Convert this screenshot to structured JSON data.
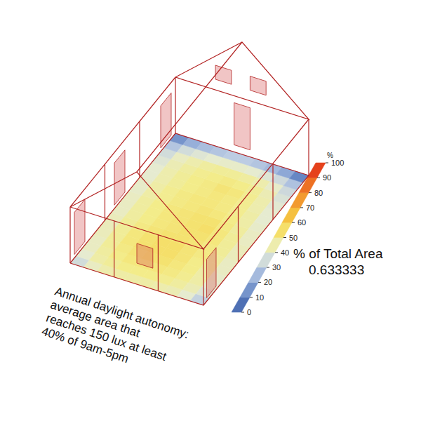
{
  "chart_data": {
    "type": "heatmap",
    "title": "Annual daylight autonomy:\naverage area that\nreaches 150 lux at least\n40% of 9am-5pm",
    "cells": [
      [
        35,
        42,
        45,
        46,
        46,
        46,
        45,
        44,
        40,
        32
      ],
      [
        40,
        46,
        48,
        50,
        50,
        50,
        49,
        47,
        44,
        38
      ],
      [
        42,
        47,
        50,
        52,
        52,
        52,
        51,
        49,
        46,
        40
      ],
      [
        42,
        48,
        51,
        53,
        54,
        54,
        52,
        50,
        46,
        41
      ],
      [
        43,
        48,
        52,
        54,
        55,
        55,
        53,
        50,
        47,
        42
      ],
      [
        43,
        48,
        52,
        54,
        55,
        55,
        53,
        51,
        47,
        42
      ],
      [
        43,
        48,
        51,
        53,
        54,
        54,
        53,
        51,
        48,
        43
      ],
      [
        42,
        47,
        50,
        52,
        53,
        54,
        54,
        52,
        48,
        43
      ],
      [
        42,
        47,
        50,
        52,
        53,
        54,
        55,
        52,
        48,
        42
      ],
      [
        42,
        47,
        50,
        52,
        53,
        54,
        54,
        51,
        47,
        42
      ],
      [
        41,
        46,
        49,
        51,
        52,
        53,
        52,
        50,
        46,
        41
      ],
      [
        41,
        46,
        49,
        51,
        52,
        52,
        51,
        49,
        46,
        40
      ],
      [
        40,
        45,
        48,
        50,
        51,
        52,
        51,
        49,
        45,
        40
      ],
      [
        40,
        45,
        48,
        50,
        51,
        53,
        52,
        49,
        45,
        39
      ],
      [
        38,
        44,
        47,
        49,
        50,
        51,
        50,
        48,
        44,
        37
      ],
      [
        35,
        42,
        45,
        47,
        48,
        48,
        47,
        45,
        41,
        34
      ],
      [
        28,
        35,
        38,
        40,
        41,
        41,
        40,
        38,
        34,
        27
      ],
      [
        15,
        22,
        26,
        28,
        30,
        30,
        28,
        25,
        20,
        12
      ]
    ],
    "colorbar": {
      "label": "%",
      "range": [
        0,
        100
      ],
      "ticks": [
        0,
        10,
        20,
        30,
        40,
        50,
        60,
        70,
        80,
        90,
        100
      ],
      "colors": [
        "#4060a8",
        "#5d7fc0",
        "#8ea8d6",
        "#bccce3",
        "#e6ebd0",
        "#f3ec8a",
        "#f6d24a",
        "#f4ad35",
        "#f08628",
        "#ea5c20",
        "#e02818"
      ]
    },
    "summary": {
      "label": "% of Total Area",
      "value": 0.633333
    }
  }
}
